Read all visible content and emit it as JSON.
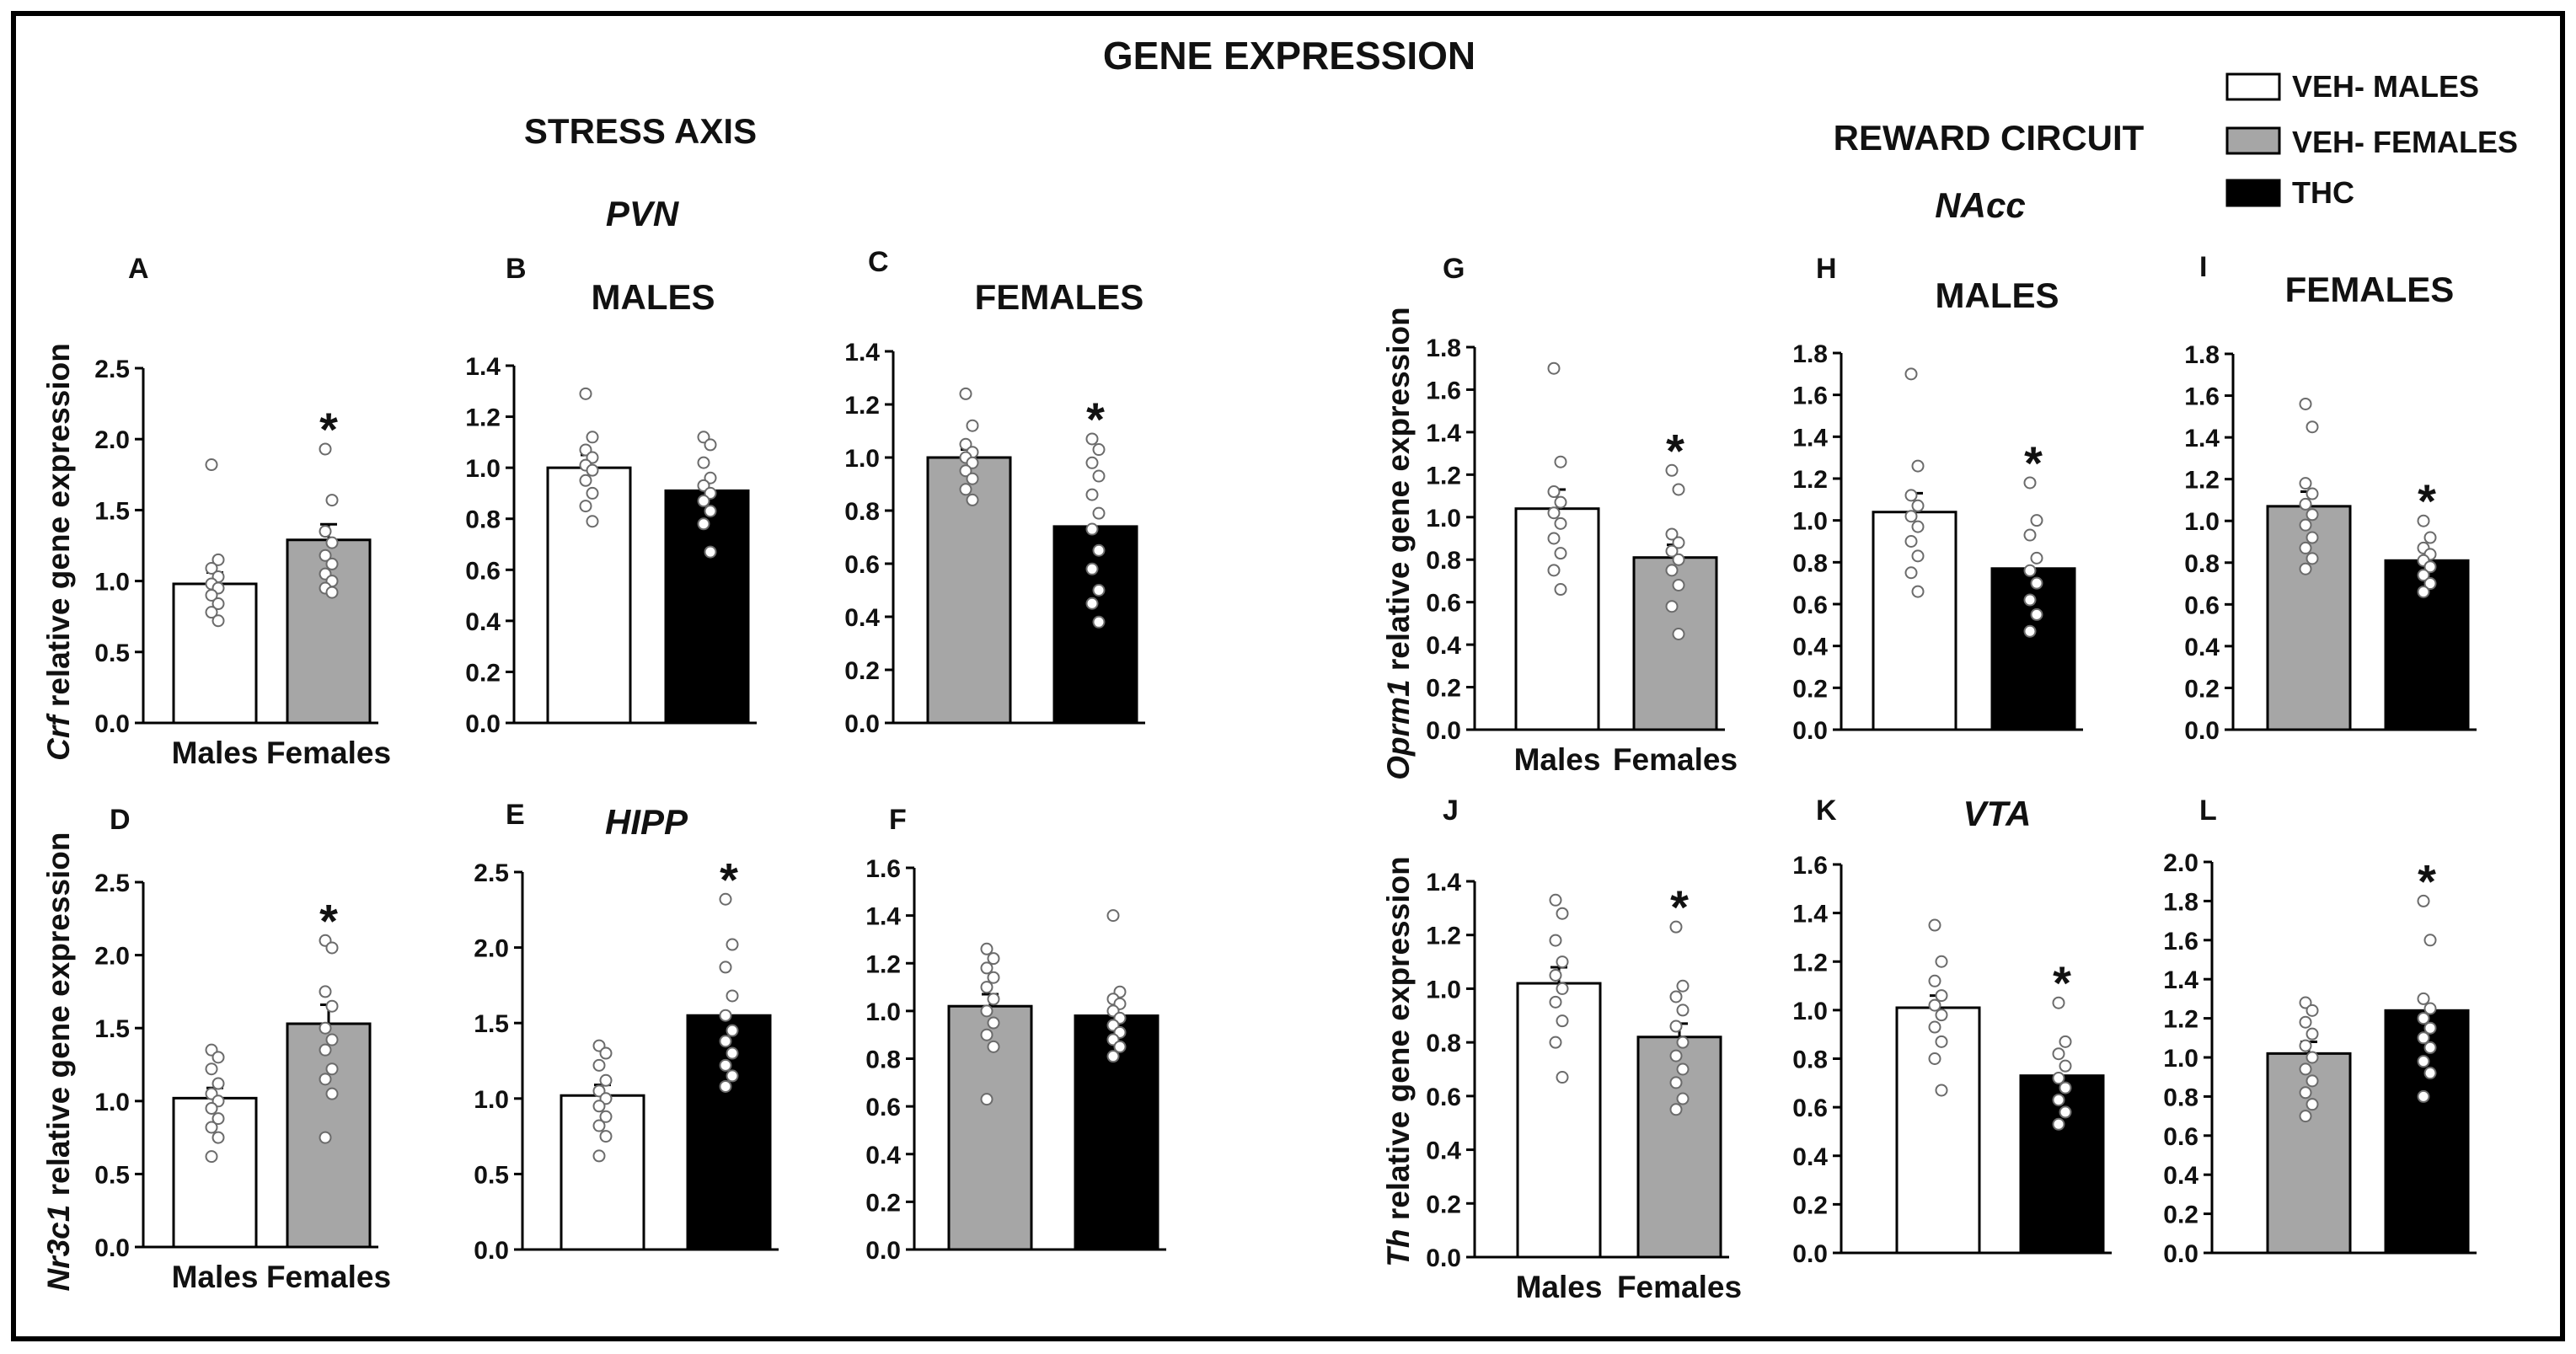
{
  "title": "GENE EXPRESSION",
  "legend": {
    "placement": "top-right",
    "items": [
      {
        "label": "VEH- MALES",
        "color": "#ffffff"
      },
      {
        "label": "VEH- FEMALES",
        "color": "#a6a6a6"
      },
      {
        "label": "THC",
        "color": "#000000"
      }
    ]
  },
  "sections": {
    "stress": "STRESS AXIS",
    "reward": "REWARD CIRCUIT",
    "pvn": "PVN",
    "hipp": "HIPP",
    "nacc": "NAcc",
    "vta": "VTA",
    "males": "MALES",
    "females": "FEMALES"
  },
  "ylabels": {
    "crf": [
      "Crf",
      " relative gene expression"
    ],
    "nr3c1": [
      "Nr3c1",
      " relative gene expression"
    ],
    "oprm1": [
      "Oprm1",
      " relative gene expression"
    ],
    "th": [
      "Th",
      " relative gene expression"
    ]
  },
  "colors": {
    "white": "#ffffff",
    "grey": "#a6a6a6",
    "black": "#000000"
  },
  "chart_data": [
    {
      "id": "A",
      "type": "bar",
      "ylim": [
        0,
        2.5
      ],
      "ticks": [
        "0.0",
        "0.5",
        "1.0",
        "1.5",
        "2.0",
        "2.5"
      ],
      "categories": [
        "Males",
        "Females"
      ],
      "values": [
        0.98,
        1.29
      ],
      "errors": [
        0.08,
        0.11
      ],
      "fills": [
        "white",
        "grey"
      ],
      "significant": [
        false,
        true
      ],
      "significance_mark": "*",
      "points": [
        [
          1.82,
          1.15,
          1.09,
          1.03,
          0.98,
          0.95,
          0.9,
          0.84,
          0.78,
          0.72
        ],
        [
          1.93,
          1.57,
          1.35,
          1.27,
          1.18,
          1.12,
          1.05,
          1.0,
          0.95,
          0.92
        ]
      ]
    },
    {
      "id": "B",
      "type": "bar",
      "ylim": [
        0,
        1.4
      ],
      "ticks": [
        "0.0",
        "0.2",
        "0.4",
        "0.6",
        "0.8",
        "1.0",
        "1.2",
        "1.4"
      ],
      "categories": [
        "",
        ""
      ],
      "values": [
        1.0,
        0.91
      ],
      "errors": [
        0.05,
        0.04
      ],
      "fills": [
        "white",
        "black"
      ],
      "significant": [
        false,
        false
      ],
      "significance_mark": "*",
      "points": [
        [
          1.29,
          1.12,
          1.07,
          1.04,
          1.01,
          0.99,
          0.95,
          0.9,
          0.85,
          0.79
        ],
        [
          1.12,
          1.09,
          1.02,
          0.96,
          0.93,
          0.9,
          0.87,
          0.83,
          0.78,
          0.67
        ]
      ]
    },
    {
      "id": "C",
      "type": "bar",
      "ylim": [
        0,
        1.4
      ],
      "ticks": [
        "0.0",
        "0.2",
        "0.4",
        "0.6",
        "0.8",
        "1.0",
        "1.2",
        "1.4"
      ],
      "categories": [
        "",
        ""
      ],
      "values": [
        1.0,
        0.74
      ],
      "errors": [
        0.03,
        0.06
      ],
      "fills": [
        "grey",
        "black"
      ],
      "significant": [
        false,
        true
      ],
      "significance_mark": "*",
      "points": [
        [
          1.24,
          1.12,
          1.05,
          1.02,
          1.0,
          0.98,
          0.95,
          0.92,
          0.88,
          0.84
        ],
        [
          1.07,
          1.03,
          0.98,
          0.93,
          0.86,
          0.79,
          0.73,
          0.65,
          0.58,
          0.5,
          0.45,
          0.38
        ]
      ]
    },
    {
      "id": "D",
      "type": "bar",
      "ylim": [
        0,
        2.5
      ],
      "ticks": [
        "0.0",
        "0.5",
        "1.0",
        "1.5",
        "2.0",
        "2.5"
      ],
      "categories": [
        "Males",
        "Females"
      ],
      "values": [
        1.02,
        1.53
      ],
      "errors": [
        0.07,
        0.13
      ],
      "fills": [
        "white",
        "grey"
      ],
      "significant": [
        false,
        true
      ],
      "significance_mark": "*",
      "points": [
        [
          1.35,
          1.3,
          1.22,
          1.12,
          1.05,
          1.0,
          0.95,
          0.88,
          0.82,
          0.75,
          0.62
        ],
        [
          2.1,
          2.05,
          1.75,
          1.65,
          1.5,
          1.42,
          1.35,
          1.22,
          1.15,
          1.05,
          0.75
        ]
      ]
    },
    {
      "id": "E",
      "type": "bar",
      "ylim": [
        0,
        2.5
      ],
      "ticks": [
        "0.0",
        "0.5",
        "1.0",
        "1.5",
        "2.0",
        "2.5"
      ],
      "categories": [
        "",
        ""
      ],
      "values": [
        1.02,
        1.55
      ],
      "errors": [
        0.07,
        0.13
      ],
      "fills": [
        "white",
        "black"
      ],
      "significant": [
        false,
        true
      ],
      "significance_mark": "*",
      "points": [
        [
          1.35,
          1.3,
          1.22,
          1.12,
          1.05,
          1.0,
          0.95,
          0.88,
          0.82,
          0.75,
          0.62
        ],
        [
          2.32,
          2.02,
          1.87,
          1.68,
          1.55,
          1.45,
          1.38,
          1.3,
          1.22,
          1.15,
          1.08
        ]
      ]
    },
    {
      "id": "F",
      "type": "bar",
      "ylim": [
        0,
        1.6
      ],
      "ticks": [
        "0.0",
        "0.2",
        "0.4",
        "0.6",
        "0.8",
        "1.0",
        "1.2",
        "1.4",
        "1.6"
      ],
      "categories": [
        "",
        ""
      ],
      "values": [
        1.02,
        0.98
      ],
      "errors": [
        0.05,
        0.04
      ],
      "fills": [
        "grey",
        "black"
      ],
      "significant": [
        false,
        false
      ],
      "significance_mark": "*",
      "points": [
        [
          1.26,
          1.22,
          1.18,
          1.14,
          1.1,
          1.05,
          1.0,
          0.95,
          0.9,
          0.85,
          0.63
        ],
        [
          1.4,
          1.08,
          1.05,
          1.03,
          1.0,
          0.97,
          0.94,
          0.91,
          0.88,
          0.85,
          0.81
        ]
      ]
    },
    {
      "id": "G",
      "type": "bar",
      "ylim": [
        0,
        1.8
      ],
      "ticks": [
        "0.0",
        "0.2",
        "0.4",
        "0.6",
        "0.8",
        "1.0",
        "1.2",
        "1.4",
        "1.6",
        "1.8"
      ],
      "categories": [
        "Males",
        "Females"
      ],
      "values": [
        1.04,
        0.81
      ],
      "errors": [
        0.09,
        0.06
      ],
      "fills": [
        "white",
        "grey"
      ],
      "significant": [
        false,
        true
      ],
      "significance_mark": "*",
      "points": [
        [
          1.7,
          1.26,
          1.12,
          1.07,
          1.02,
          0.97,
          0.9,
          0.83,
          0.75,
          0.66
        ],
        [
          1.22,
          1.13,
          0.92,
          0.88,
          0.84,
          0.8,
          0.75,
          0.68,
          0.58,
          0.45
        ]
      ]
    },
    {
      "id": "H",
      "type": "bar",
      "ylim": [
        0,
        1.8
      ],
      "ticks": [
        "0.0",
        "0.2",
        "0.4",
        "0.6",
        "0.8",
        "1.0",
        "1.2",
        "1.4",
        "1.6",
        "1.8"
      ],
      "categories": [
        "",
        ""
      ],
      "values": [
        1.04,
        0.77
      ],
      "errors": [
        0.09,
        0.06
      ],
      "fills": [
        "white",
        "black"
      ],
      "significant": [
        false,
        true
      ],
      "significance_mark": "*",
      "points": [
        [
          1.7,
          1.26,
          1.12,
          1.07,
          1.02,
          0.97,
          0.9,
          0.83,
          0.75,
          0.66
        ],
        [
          1.18,
          1.0,
          0.93,
          0.82,
          0.76,
          0.7,
          0.62,
          0.55,
          0.47
        ]
      ]
    },
    {
      "id": "I",
      "type": "bar",
      "ylim": [
        0,
        1.8
      ],
      "ticks": [
        "0.0",
        "0.2",
        "0.4",
        "0.6",
        "0.8",
        "1.0",
        "1.2",
        "1.4",
        "1.6",
        "1.8"
      ],
      "categories": [
        "",
        ""
      ],
      "values": [
        1.07,
        0.81
      ],
      "errors": [
        0.07,
        0.03
      ],
      "fills": [
        "grey",
        "black"
      ],
      "significant": [
        false,
        true
      ],
      "significance_mark": "*",
      "points": [
        [
          1.56,
          1.45,
          1.18,
          1.13,
          1.08,
          1.03,
          0.98,
          0.92,
          0.87,
          0.82,
          0.77
        ],
        [
          1.0,
          0.92,
          0.87,
          0.84,
          0.81,
          0.78,
          0.74,
          0.7,
          0.66
        ]
      ]
    },
    {
      "id": "J",
      "type": "bar",
      "ylim": [
        0,
        1.4
      ],
      "ticks": [
        "0.0",
        "0.2",
        "0.4",
        "0.6",
        "0.8",
        "1.0",
        "1.2",
        "1.4"
      ],
      "categories": [
        "Males",
        "Females"
      ],
      "values": [
        1.02,
        0.82
      ],
      "errors": [
        0.06,
        0.05
      ],
      "fills": [
        "white",
        "grey"
      ],
      "significant": [
        false,
        true
      ],
      "significance_mark": "*",
      "points": [
        [
          1.33,
          1.28,
          1.18,
          1.1,
          1.05,
          1.0,
          0.95,
          0.88,
          0.8,
          0.67
        ],
        [
          1.23,
          1.01,
          0.97,
          0.92,
          0.86,
          0.8,
          0.75,
          0.7,
          0.65,
          0.59,
          0.55
        ]
      ]
    },
    {
      "id": "K",
      "type": "bar",
      "ylim": [
        0,
        1.6
      ],
      "ticks": [
        "0.0",
        "0.2",
        "0.4",
        "0.6",
        "0.8",
        "1.0",
        "1.2",
        "1.4",
        "1.6"
      ],
      "categories": [
        "",
        ""
      ],
      "values": [
        1.01,
        0.73
      ],
      "errors": [
        0.05,
        0.04
      ],
      "fills": [
        "white",
        "black"
      ],
      "significant": [
        false,
        true
      ],
      "significance_mark": "*",
      "points": [
        [
          1.35,
          1.2,
          1.12,
          1.06,
          1.02,
          0.98,
          0.93,
          0.87,
          0.8,
          0.67
        ],
        [
          1.03,
          0.87,
          0.82,
          0.77,
          0.72,
          0.68,
          0.63,
          0.58,
          0.53
        ]
      ]
    },
    {
      "id": "L",
      "type": "bar",
      "ylim": [
        0,
        2.0
      ],
      "ticks": [
        "0.0",
        "0.2",
        "0.4",
        "0.6",
        "0.8",
        "1.0",
        "1.2",
        "1.4",
        "1.6",
        "1.8",
        "2.0"
      ],
      "categories": [
        "",
        ""
      ],
      "values": [
        1.02,
        1.24
      ],
      "errors": [
        0.06,
        0.07
      ],
      "fills": [
        "grey",
        "black"
      ],
      "significant": [
        false,
        true
      ],
      "significance_mark": "*",
      "points": [
        [
          1.28,
          1.24,
          1.18,
          1.12,
          1.06,
          1.0,
          0.94,
          0.88,
          0.82,
          0.76,
          0.7
        ],
        [
          1.8,
          1.6,
          1.3,
          1.25,
          1.2,
          1.15,
          1.1,
          1.05,
          0.98,
          0.92,
          0.8
        ]
      ]
    }
  ]
}
